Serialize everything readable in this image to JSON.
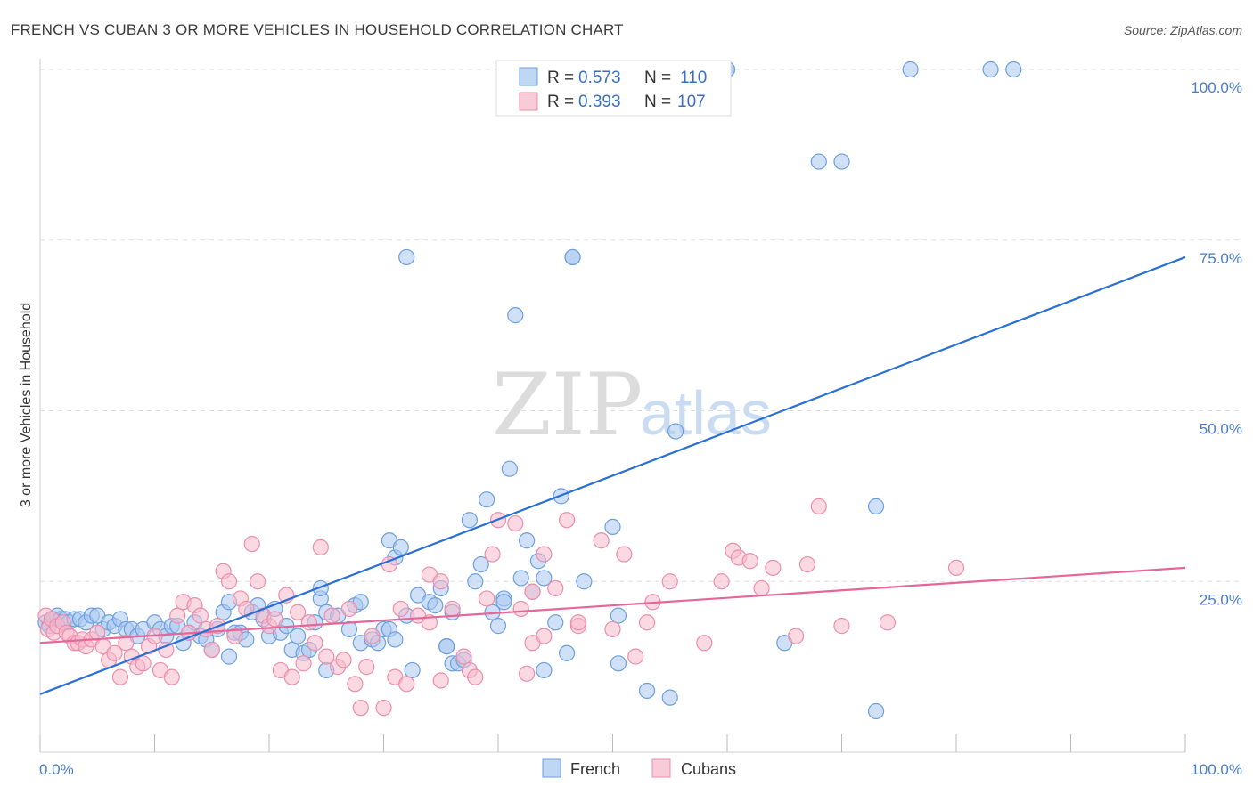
{
  "title": "FRENCH VS CUBAN 3 OR MORE VEHICLES IN HOUSEHOLD CORRELATION CHART",
  "source": "Source: ZipAtlas.com",
  "watermark": {
    "zip": "ZIP",
    "atlas": "atlas"
  },
  "colors": {
    "french_fill": "#a9c8f0",
    "french_stroke": "#6d9fe0",
    "french_line": "#2a6fd6",
    "cubans_fill": "#f7b9cc",
    "cubans_stroke": "#ec8eab",
    "cubans_line": "#e5679a",
    "tick_text": "#4a7cc9",
    "grid": "#dddddd"
  },
  "legend": {
    "rows": [
      {
        "r_label": "R =",
        "r_value": "0.573",
        "n_label": "N =",
        "n_value": "110"
      },
      {
        "r_label": "R =",
        "r_value": "0.393",
        "n_label": "N =",
        "n_value": "107"
      }
    ]
  },
  "chart_data": {
    "type": "scatter",
    "title": "FRENCH VS CUBAN 3 OR MORE VEHICLES IN HOUSEHOLD CORRELATION CHART",
    "xlabel": "",
    "ylabel": "3 or more Vehicles in Household",
    "xlim": [
      0,
      100
    ],
    "ylim": [
      0,
      100
    ],
    "x_tick_labels": [
      "0.0%",
      "100.0%"
    ],
    "y_ticks": [
      25,
      50,
      75,
      100
    ],
    "y_tick_labels": [
      "25.0%",
      "50.0%",
      "75.0%",
      "100.0%"
    ],
    "grid": "horizontal dashed",
    "legend_position": "bottom-center",
    "series": [
      {
        "name": "French",
        "trend": {
          "x": [
            0,
            100
          ],
          "y": [
            8.5,
            72.5
          ]
        },
        "points": [
          [
            0.5,
            19
          ],
          [
            0.8,
            18.5
          ],
          [
            1.2,
            19.5
          ],
          [
            1.5,
            20
          ],
          [
            1.8,
            19.5
          ],
          [
            2.2,
            19.5
          ],
          [
            2.5,
            19
          ],
          [
            3,
            19.5
          ],
          [
            3.5,
            19.5
          ],
          [
            4,
            19
          ],
          [
            4.5,
            20
          ],
          [
            5,
            20
          ],
          [
            5.5,
            18
          ],
          [
            6,
            19
          ],
          [
            6.5,
            18.5
          ],
          [
            7,
            19.5
          ],
          [
            7.5,
            18
          ],
          [
            8,
            18
          ],
          [
            8.5,
            17
          ],
          [
            9,
            18
          ],
          [
            10,
            19
          ],
          [
            10.5,
            18
          ],
          [
            11,
            17
          ],
          [
            11.5,
            18.5
          ],
          [
            12,
            18.5
          ],
          [
            12.5,
            16
          ],
          [
            13,
            17.5
          ],
          [
            13.5,
            19
          ],
          [
            14,
            17
          ],
          [
            14.5,
            16.5
          ],
          [
            15,
            15
          ],
          [
            15.5,
            18
          ],
          [
            16,
            20.5
          ],
          [
            16.5,
            22
          ],
          [
            16.5,
            14
          ],
          [
            17,
            17.5
          ],
          [
            17.5,
            17.5
          ],
          [
            18,
            16.5
          ],
          [
            18.5,
            20.5
          ],
          [
            19,
            21.5
          ],
          [
            19.5,
            19.5
          ],
          [
            20,
            17
          ],
          [
            20.5,
            21
          ],
          [
            21,
            17.5
          ],
          [
            21.5,
            18.5
          ],
          [
            22,
            15
          ],
          [
            22.5,
            17
          ],
          [
            23,
            14.5
          ],
          [
            23.5,
            15
          ],
          [
            24,
            19
          ],
          [
            24.5,
            22.5
          ],
          [
            24.5,
            24
          ],
          [
            25,
            20.5
          ],
          [
            25,
            12
          ],
          [
            26,
            20
          ],
          [
            27,
            18
          ],
          [
            27.5,
            21.5
          ],
          [
            28,
            22
          ],
          [
            28,
            16
          ],
          [
            29,
            16.5
          ],
          [
            29.5,
            16
          ],
          [
            30,
            18
          ],
          [
            30.5,
            18
          ],
          [
            30.5,
            31
          ],
          [
            31,
            28.5
          ],
          [
            31.5,
            30
          ],
          [
            31,
            16.5
          ],
          [
            32,
            20
          ],
          [
            32,
            72.5
          ],
          [
            32.5,
            12
          ],
          [
            33,
            23
          ],
          [
            34,
            22
          ],
          [
            34.5,
            21.5
          ],
          [
            35,
            24
          ],
          [
            35.5,
            15.5
          ],
          [
            35.5,
            15.5
          ],
          [
            36,
            20.5
          ],
          [
            36,
            13
          ],
          [
            36.5,
            13
          ],
          [
            37,
            13.5
          ],
          [
            38,
            25
          ],
          [
            37.5,
            34
          ],
          [
            38.5,
            27.5
          ],
          [
            39,
            37
          ],
          [
            39.5,
            20.5
          ],
          [
            40,
            18.5
          ],
          [
            40.5,
            22.5
          ],
          [
            40.5,
            22
          ],
          [
            41,
            41.5
          ],
          [
            41.5,
            64
          ],
          [
            42,
            25.5
          ],
          [
            42.5,
            31
          ],
          [
            43,
            23.5
          ],
          [
            43.5,
            28
          ],
          [
            44,
            25.5
          ],
          [
            44,
            12
          ],
          [
            45,
            19
          ],
          [
            45.5,
            37.5
          ],
          [
            46,
            14.5
          ],
          [
            46.5,
            72.5
          ],
          [
            46.5,
            72.5
          ],
          [
            47.5,
            25
          ],
          [
            50,
            33
          ],
          [
            50.5,
            20
          ],
          [
            50.5,
            13
          ],
          [
            53,
            9
          ],
          [
            55,
            8
          ],
          [
            55.5,
            47
          ],
          [
            60,
            100
          ],
          [
            60,
            100
          ],
          [
            68,
            86.5
          ],
          [
            70,
            86.5
          ],
          [
            73,
            36
          ],
          [
            73,
            6
          ],
          [
            76,
            100
          ],
          [
            83,
            100
          ],
          [
            85,
            100
          ],
          [
            65,
            16
          ]
        ]
      },
      {
        "name": "Cubans",
        "trend": {
          "x": [
            0,
            100
          ],
          "y": [
            16,
            27
          ]
        },
        "points": [
          [
            0.5,
            20
          ],
          [
            0.7,
            18
          ],
          [
            1,
            19.5
          ],
          [
            1.2,
            17.5
          ],
          [
            1.5,
            18.5
          ],
          [
            2,
            19
          ],
          [
            2.3,
            17.5
          ],
          [
            2.6,
            17
          ],
          [
            3,
            16
          ],
          [
            3.3,
            16
          ],
          [
            3.7,
            16.5
          ],
          [
            4,
            15.5
          ],
          [
            4.5,
            16.5
          ],
          [
            5,
            17.5
          ],
          [
            5.5,
            15.5
          ],
          [
            6,
            13.5
          ],
          [
            6.5,
            14.5
          ],
          [
            7,
            11
          ],
          [
            7.5,
            16
          ],
          [
            8,
            14
          ],
          [
            8.5,
            12.5
          ],
          [
            9,
            13
          ],
          [
            9.5,
            15.5
          ],
          [
            10,
            17
          ],
          [
            10.5,
            12
          ],
          [
            11,
            15
          ],
          [
            11.5,
            11
          ],
          [
            12,
            20
          ],
          [
            12.5,
            22
          ],
          [
            13,
            17.5
          ],
          [
            13.5,
            21.5
          ],
          [
            14,
            20
          ],
          [
            14.5,
            18
          ],
          [
            15,
            15
          ],
          [
            15.5,
            18.5
          ],
          [
            16,
            26.5
          ],
          [
            16.5,
            25
          ],
          [
            17,
            17
          ],
          [
            17.5,
            22.5
          ],
          [
            18,
            21
          ],
          [
            18.5,
            30.5
          ],
          [
            19,
            25
          ],
          [
            19.5,
            20
          ],
          [
            20,
            18.5
          ],
          [
            20.5,
            19.5
          ],
          [
            21,
            12
          ],
          [
            21.5,
            23
          ],
          [
            22,
            11
          ],
          [
            22.5,
            20.5
          ],
          [
            23,
            13
          ],
          [
            23.5,
            19
          ],
          [
            24,
            16
          ],
          [
            24.5,
            30
          ],
          [
            25,
            14
          ],
          [
            25.5,
            20
          ],
          [
            26,
            12.5
          ],
          [
            26.5,
            13.5
          ],
          [
            27,
            21
          ],
          [
            27.5,
            10
          ],
          [
            28,
            6.5
          ],
          [
            28.5,
            12.5
          ],
          [
            29,
            17
          ],
          [
            30,
            6.5
          ],
          [
            30.5,
            27.5
          ],
          [
            31,
            11
          ],
          [
            31.5,
            21
          ],
          [
            32,
            10
          ],
          [
            33,
            20
          ],
          [
            34,
            19
          ],
          [
            34,
            26
          ],
          [
            35,
            10.5
          ],
          [
            35,
            25
          ],
          [
            36,
            21
          ],
          [
            37,
            14
          ],
          [
            37.5,
            12
          ],
          [
            38,
            11
          ],
          [
            39,
            22.5
          ],
          [
            39.5,
            29
          ],
          [
            40,
            34
          ],
          [
            41.5,
            33.5
          ],
          [
            42,
            21
          ],
          [
            42.5,
            11.5
          ],
          [
            43,
            23.5
          ],
          [
            43,
            16
          ],
          [
            44,
            17
          ],
          [
            44,
            29
          ],
          [
            45,
            24
          ],
          [
            46,
            34
          ],
          [
            47,
            18.5
          ],
          [
            47,
            19
          ],
          [
            49,
            31
          ],
          [
            50,
            18
          ],
          [
            51,
            29
          ],
          [
            52,
            14
          ],
          [
            53,
            19
          ],
          [
            53.5,
            22
          ],
          [
            55,
            25
          ],
          [
            58,
            16
          ],
          [
            59.5,
            25
          ],
          [
            60.5,
            29.5
          ],
          [
            61,
            28.5
          ],
          [
            62,
            28
          ],
          [
            63,
            24
          ],
          [
            64,
            27
          ],
          [
            66,
            17
          ],
          [
            67,
            27.5
          ],
          [
            68,
            36
          ],
          [
            70,
            18.5
          ],
          [
            74,
            19
          ],
          [
            80,
            27
          ]
        ]
      }
    ]
  },
  "x_axis_labels": {
    "left": "0.0%",
    "right": "100.0%"
  },
  "y_axis_title": "3 or more Vehicles in Household",
  "bottom_legend": {
    "french": "French",
    "cubans": "Cubans"
  }
}
